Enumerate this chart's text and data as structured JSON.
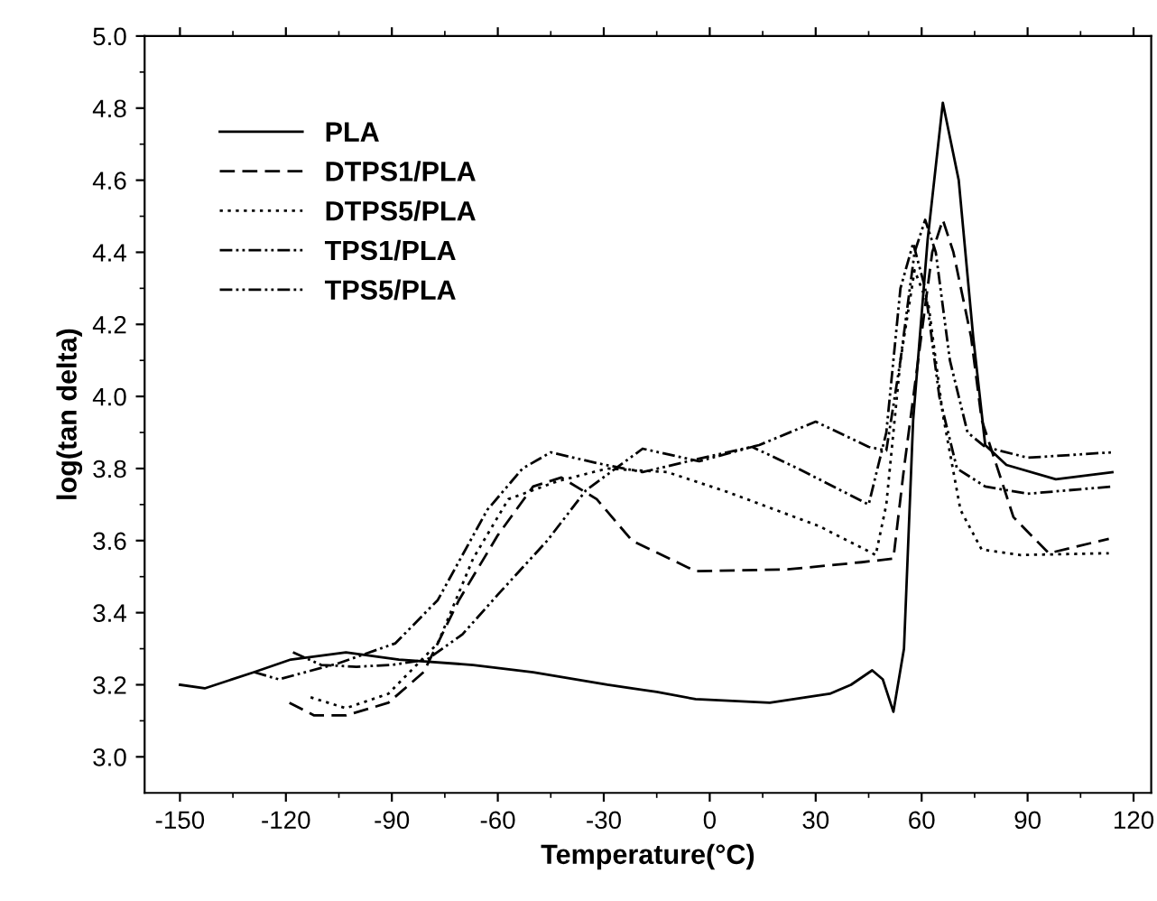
{
  "chart_data": {
    "type": "line",
    "xlabel": "Temperature(°C)",
    "ylabel": "log(tan delta)",
    "xlim": [
      -160,
      125
    ],
    "ylim": [
      2.9,
      5.0
    ],
    "xticks": [
      -150,
      -120,
      -90,
      -60,
      -30,
      0,
      30,
      60,
      90,
      120
    ],
    "yticks": [
      {
        "value": 3,
        "label": "3.0"
      },
      3.2,
      3.4,
      3.6,
      3.8,
      {
        "value": 4,
        "label": "4.0"
      },
      4.2,
      4.4,
      4.6,
      4.8,
      {
        "value": 5,
        "label": "5.0"
      }
    ],
    "grid": false,
    "legend": "top left",
    "series": [
      {
        "name": "PLA",
        "color": "#000000",
        "line_style": "solid",
        "x": [
          -150,
          -143,
          -129,
          -118.6,
          -103,
          -88,
          -67,
          -50,
          -29,
          -15,
          -4,
          17,
          34,
          40,
          46,
          49,
          52,
          55,
          57.6,
          61.7,
          66,
          70.5,
          74.6,
          78,
          84,
          98,
          114
        ],
        "values": [
          3.2,
          3.19,
          3.235,
          3.27,
          3.29,
          3.27,
          3.255,
          3.235,
          3.2,
          3.18,
          3.16,
          3.15,
          3.175,
          3.2,
          3.24,
          3.215,
          3.125,
          3.3,
          3.935,
          4.435,
          4.815,
          4.6,
          4.165,
          3.865,
          3.81,
          3.77,
          3.79
        ]
      },
      {
        "name": "DTPS1/PLA",
        "color": "#000000",
        "line_style": "dashed",
        "x": [
          -119,
          -112,
          -103,
          -91,
          -81,
          -71,
          -60,
          -50,
          -42,
          -32,
          -22,
          -4,
          22,
          43,
          52,
          55,
          59,
          63,
          66,
          69,
          74,
          77,
          86,
          96,
          113
        ],
        "values": [
          3.15,
          3.115,
          3.115,
          3.15,
          3.235,
          3.435,
          3.615,
          3.75,
          3.775,
          3.715,
          3.6,
          3.515,
          3.52,
          3.54,
          3.55,
          3.8,
          4.1,
          4.4,
          4.49,
          4.4,
          4.165,
          3.935,
          3.665,
          3.565,
          3.605
        ]
      },
      {
        "name": "DTPS5/PLA",
        "color": "#000000",
        "line_style": "dotted",
        "x": [
          -113,
          -103,
          -91,
          -77,
          -67,
          -57,
          -43,
          -29,
          -12,
          5,
          31,
          47,
          50,
          54,
          58,
          62,
          66,
          71,
          77,
          88,
          113
        ],
        "values": [
          3.165,
          3.135,
          3.175,
          3.315,
          3.55,
          3.715,
          3.765,
          3.8,
          3.79,
          3.735,
          3.64,
          3.56,
          3.7,
          4.1,
          4.35,
          4.25,
          3.95,
          3.685,
          3.575,
          3.56,
          3.565
        ]
      },
      {
        "name": "TPS1/PLA",
        "color": "#000000",
        "line_style": "dashdotdot",
        "x": [
          -129,
          -122,
          -105,
          -89,
          -77,
          -63,
          -53,
          -45,
          -32,
          -19,
          -4,
          14,
          30,
          45,
          50,
          54,
          58,
          61,
          64,
          68,
          73,
          78,
          90,
          114
        ],
        "values": [
          3.235,
          3.215,
          3.26,
          3.315,
          3.435,
          3.685,
          3.8,
          3.845,
          3.815,
          3.79,
          3.825,
          3.865,
          3.93,
          3.86,
          3.85,
          4.1,
          4.4,
          4.49,
          4.4,
          4.1,
          3.9,
          3.86,
          3.83,
          3.845
        ]
      },
      {
        "name": "TPS5/PLA",
        "color": "#000000",
        "line_style": "dashdotdot",
        "x": [
          -118,
          -110,
          -100,
          -90,
          -80,
          -70,
          -60,
          -46,
          -35,
          -19,
          -3,
          12,
          25,
          45,
          50,
          54,
          57.6,
          61,
          65,
          70,
          78,
          90,
          114
        ],
        "values": [
          3.29,
          3.255,
          3.25,
          3.255,
          3.27,
          3.34,
          3.45,
          3.6,
          3.74,
          3.855,
          3.82,
          3.86,
          3.8,
          3.7,
          3.9,
          4.3,
          4.425,
          4.3,
          4.0,
          3.8,
          3.75,
          3.73,
          3.75
        ]
      }
    ]
  }
}
